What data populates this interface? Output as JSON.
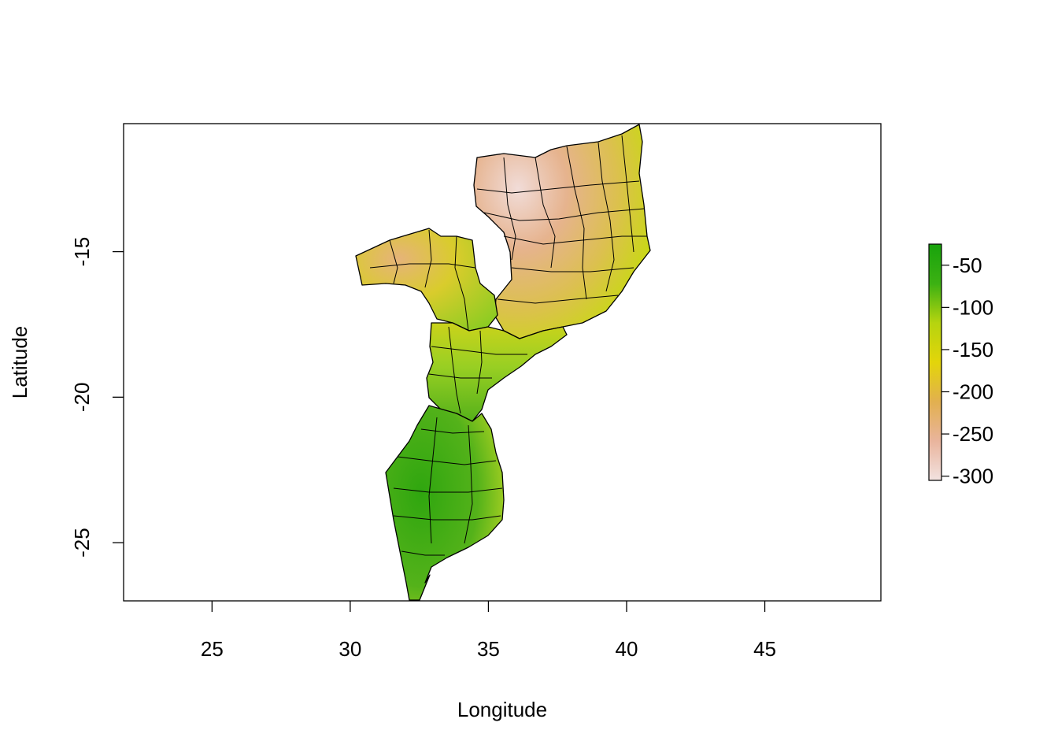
{
  "plot": {
    "xlabel": "Longitude",
    "ylabel": "Latitude",
    "xlim": [
      21.8,
      49.2
    ],
    "ylim": [
      -27.0,
      -10.6
    ],
    "xticks": [
      25,
      30,
      35,
      40,
      45
    ],
    "yticks": [
      -15,
      -20,
      -25
    ]
  },
  "legend": {
    "range": [
      -305,
      -25
    ],
    "ticks": [
      -50,
      -100,
      -150,
      -200,
      -250,
      -300
    ],
    "colors": [
      "#f2e2e0",
      "#e9b49c",
      "#e2b04f",
      "#e3d50a",
      "#b6d40f",
      "#3cb113",
      "#18a30c"
    ]
  },
  "map": {
    "region_fills": {
      "north_east_low": "#e8b79b",
      "north_mid": "#dcc15a",
      "north_coast": "#c5d90f",
      "west_arm": "#d7c742",
      "center": "#a5cf25",
      "south": "#45ad18"
    },
    "border_color": "#000000"
  }
}
